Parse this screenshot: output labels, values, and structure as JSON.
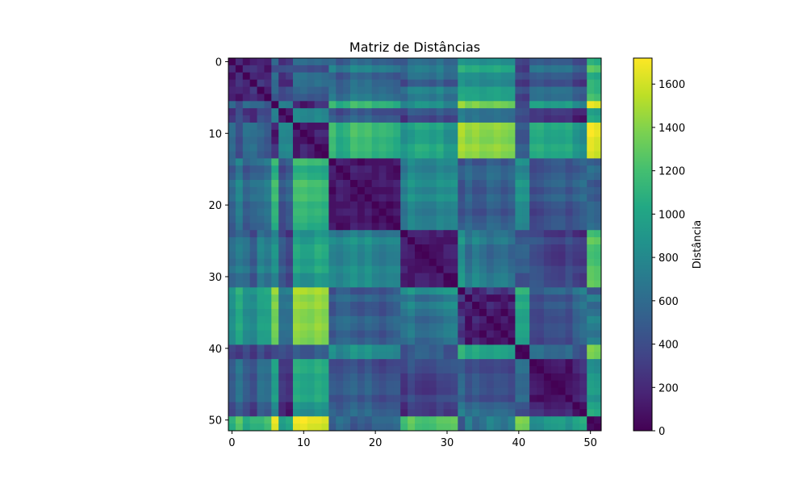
{
  "chart_data": {
    "type": "heatmap",
    "title": "Matriz de Distâncias",
    "xlabel": "",
    "ylabel": "",
    "size": 52,
    "x_ticks": [
      0,
      10,
      20,
      30,
      40,
      50
    ],
    "y_ticks": [
      0,
      10,
      20,
      30,
      40,
      50
    ],
    "colorbar": {
      "label": "Distância",
      "range": [
        0,
        1720
      ],
      "ticks": [
        0,
        200,
        400,
        600,
        800,
        1000,
        1200,
        1400,
        1600
      ],
      "colormap": "viridis"
    },
    "matrix_description": "Symmetric 52x52 distance matrix, zero on the diagonal; values estimated from the color scale",
    "matrix": []
  },
  "colors": {
    "viridis_low": "#440154",
    "viridis_mid": "#21918c",
    "viridis_high": "#fde725"
  }
}
